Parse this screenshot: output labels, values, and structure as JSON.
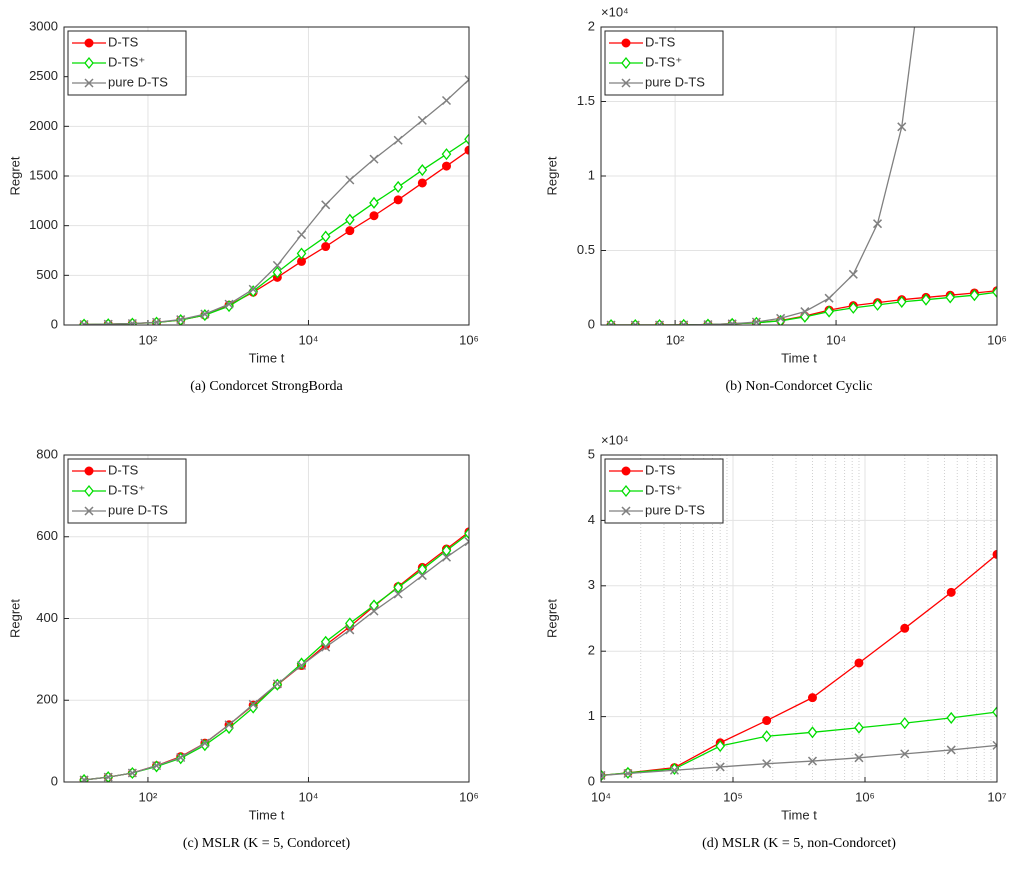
{
  "chart_data": [
    {
      "type": "line",
      "caption": "(a)  Condorcet StrongBorda",
      "xlabel": "Time t",
      "ylabel": "Regret",
      "xscale": "log",
      "xlim": [
        9,
        1000000
      ],
      "xticks": [
        {
          "value": 100,
          "label": "10²"
        },
        {
          "value": 10000,
          "label": "10⁴"
        },
        {
          "value": 1000000,
          "label": "10⁶"
        }
      ],
      "ylim": [
        0,
        3000
      ],
      "yticks": [
        0,
        500,
        1000,
        1500,
        2000,
        2500,
        3000
      ],
      "grid": true,
      "legend": "upper left",
      "x": [
        16,
        32,
        64,
        128,
        256,
        512,
        1024,
        2048,
        4096,
        8192,
        16384,
        32768,
        65536,
        131072,
        262144,
        524288,
        1000000
      ],
      "series": [
        {
          "name": "D-TS",
          "color": "#ff0000",
          "marker": "o",
          "values": [
            5,
            8,
            15,
            25,
            50,
            100,
            200,
            330,
            480,
            640,
            790,
            950,
            1100,
            1260,
            1430,
            1600,
            1760
          ]
        },
        {
          "name": "D-TS⁺",
          "color": "#00dd00",
          "marker": "diamond",
          "values": [
            5,
            8,
            15,
            25,
            50,
            100,
            190,
            340,
            530,
            720,
            890,
            1060,
            1230,
            1390,
            1560,
            1720,
            1870
          ]
        },
        {
          "name": "pure D-TS",
          "color": "#808080",
          "marker": "x",
          "values": [
            5,
            8,
            15,
            28,
            55,
            110,
            210,
            360,
            600,
            910,
            1210,
            1460,
            1670,
            1860,
            2060,
            2260,
            2470
          ]
        }
      ]
    },
    {
      "type": "line",
      "caption": "(b)  Non-Condorcet Cyclic",
      "xlabel": "Time t",
      "ylabel": "Regret",
      "xscale": "log",
      "xlim": [
        12,
        1000000
      ],
      "xticks": [
        {
          "value": 100,
          "label": "10²"
        },
        {
          "value": 10000,
          "label": "10⁴"
        },
        {
          "value": 1000000,
          "label": "10⁶"
        }
      ],
      "ylim": [
        0,
        20000
      ],
      "yticks": [
        0,
        {
          "value": 5000,
          "label": "0.5"
        },
        {
          "value": 10000,
          "label": "1"
        },
        {
          "value": 15000,
          "label": "1.5"
        },
        {
          "value": 20000,
          "label": "2"
        }
      ],
      "y_exponent": "×10⁴",
      "grid": true,
      "legend": "upper left",
      "x": [
        16,
        32,
        64,
        128,
        256,
        512,
        1024,
        2048,
        4096,
        8192,
        16384,
        32768,
        65536,
        131072,
        262144,
        524288,
        1000000
      ],
      "series": [
        {
          "name": "D-TS",
          "color": "#ff0000",
          "marker": "o",
          "values": [
            0,
            0,
            0,
            10,
            30,
            80,
            150,
            300,
            600,
            1000,
            1300,
            1500,
            1700,
            1850,
            2000,
            2150,
            2300
          ]
        },
        {
          "name": "D-TS⁺",
          "color": "#00dd00",
          "marker": "diamond",
          "values": [
            0,
            0,
            0,
            10,
            30,
            80,
            150,
            280,
            550,
            900,
            1150,
            1350,
            1550,
            1700,
            1850,
            2000,
            2200
          ]
        },
        {
          "name": "pure D-TS",
          "color": "#808080",
          "marker": "x",
          "values": [
            0,
            0,
            0,
            10,
            30,
            80,
            200,
            450,
            900,
            1800,
            3400,
            6800,
            13300,
            26000,
            null,
            null,
            null
          ]
        }
      ]
    },
    {
      "type": "line",
      "caption": "(c)  MSLR (K = 5, Condorcet)",
      "xlabel": "Time t",
      "ylabel": "Regret",
      "xscale": "log",
      "xlim": [
        9,
        1000000
      ],
      "xticks": [
        {
          "value": 100,
          "label": "10²"
        },
        {
          "value": 10000,
          "label": "10⁴"
        },
        {
          "value": 1000000,
          "label": "10⁶"
        }
      ],
      "ylim": [
        0,
        800
      ],
      "yticks": [
        0,
        200,
        400,
        600,
        800
      ],
      "grid": true,
      "legend": "upper left",
      "x": [
        16,
        32,
        64,
        128,
        256,
        512,
        1024,
        2048,
        4096,
        8192,
        16384,
        32768,
        65536,
        131072,
        262144,
        524288,
        1000000
      ],
      "series": [
        {
          "name": "D-TS",
          "color": "#ff0000",
          "marker": "o",
          "values": [
            5,
            12,
            22,
            40,
            62,
            95,
            140,
            188,
            238,
            285,
            335,
            380,
            430,
            478,
            525,
            570,
            612
          ]
        },
        {
          "name": "D-TS⁺",
          "color": "#00dd00",
          "marker": "diamond",
          "values": [
            5,
            12,
            22,
            38,
            58,
            90,
            132,
            182,
            238,
            290,
            343,
            388,
            432,
            476,
            520,
            566,
            608
          ]
        },
        {
          "name": "pure D-TS",
          "color": "#808080",
          "marker": "x",
          "values": [
            5,
            12,
            22,
            40,
            60,
            95,
            140,
            190,
            240,
            285,
            330,
            372,
            418,
            460,
            505,
            550,
            588
          ]
        }
      ]
    },
    {
      "type": "line",
      "caption": "(d)  MSLR (K = 5, non-Condorcet)",
      "xlabel": "Time t",
      "ylabel": "Regret",
      "xscale": "log",
      "xlim": [
        10000,
        10000000
      ],
      "xticks": [
        {
          "value": 10000,
          "label": "10⁴"
        },
        {
          "value": 100000,
          "label": "10⁵"
        },
        {
          "value": 1000000,
          "label": "10⁶"
        },
        {
          "value": 10000000,
          "label": "10⁷"
        }
      ],
      "ylim": [
        0,
        50000
      ],
      "yticks": [
        0,
        {
          "value": 10000,
          "label": "1"
        },
        {
          "value": 20000,
          "label": "2"
        },
        {
          "value": 30000,
          "label": "3"
        },
        {
          "value": 40000,
          "label": "4"
        },
        {
          "value": 50000,
          "label": "5"
        }
      ],
      "y_exponent": "×10⁴",
      "grid": true,
      "minor_grid": true,
      "legend": "upper left",
      "x": [
        10000,
        16000,
        36000,
        80000,
        180000,
        400000,
        900000,
        2000000,
        4500000,
        10000000
      ],
      "series": [
        {
          "name": "D-TS",
          "color": "#ff0000",
          "marker": "o",
          "values": [
            1000,
            1400,
            2200,
            6000,
            9400,
            12900,
            18200,
            23500,
            29000,
            34800
          ]
        },
        {
          "name": "D-TS⁺",
          "color": "#00dd00",
          "marker": "diamond",
          "values": [
            1000,
            1400,
            2000,
            5500,
            7000,
            7600,
            8300,
            9000,
            9800,
            10700
          ]
        },
        {
          "name": "pure D-TS",
          "color": "#808080",
          "marker": "x",
          "values": [
            1000,
            1300,
            1800,
            2300,
            2800,
            3200,
            3700,
            4300,
            4900,
            5600
          ]
        }
      ]
    }
  ]
}
